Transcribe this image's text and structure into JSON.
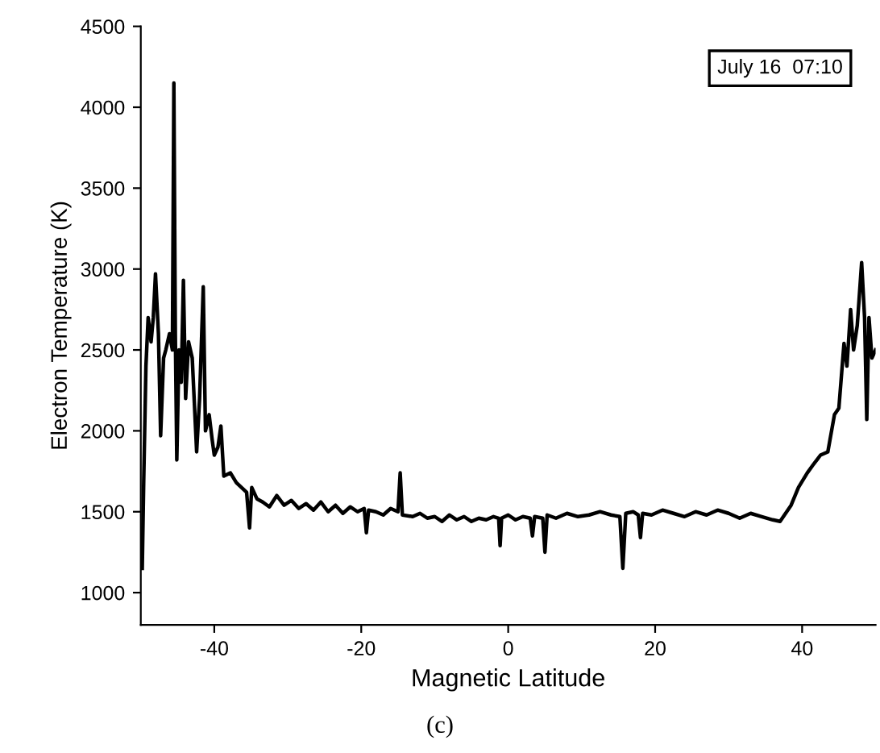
{
  "chart_data": {
    "type": "line",
    "xlabel": "Magnetic Latitude",
    "ylabel": "Electron Temperature (K)",
    "annotations": [
      "July 16  07:10",
      "(c)"
    ],
    "xlim": [
      -50,
      50
    ],
    "ylim": [
      800,
      4500
    ],
    "xticks": [
      -40,
      -20,
      0,
      20,
      40
    ],
    "yticks": [
      1000,
      1500,
      2000,
      2500,
      3000,
      3500,
      4000,
      4500
    ],
    "marker": "none",
    "line_style": "solid",
    "series": [
      {
        "color": "#000000",
        "x": [
          -49.8,
          -49.6,
          -49.3,
          -49.0,
          -48.6,
          -48.3,
          -48.0,
          -47.6,
          -47.3,
          -46.9,
          -46.6,
          -46.1,
          -45.7,
          -45.5,
          -45.3,
          -45.1,
          -44.8,
          -44.5,
          -44.2,
          -43.9,
          -43.5,
          -43.0,
          -42.4,
          -42.0,
          -41.5,
          -41.2,
          -40.7,
          -40.3,
          -40.0,
          -39.5,
          -39.1,
          -38.7,
          -37.8,
          -37.0,
          -36.3,
          -35.6,
          -35.2,
          -34.9,
          -34.2,
          -33.4,
          -32.5,
          -31.5,
          -30.5,
          -29.5,
          -28.5,
          -27.5,
          -26.5,
          -25.5,
          -24.5,
          -23.5,
          -22.5,
          -21.5,
          -20.5,
          -19.6,
          -19.3,
          -19.0,
          -18.0,
          -17.0,
          -16.0,
          -15.0,
          -14.7,
          -14.4,
          -13.0,
          -12.0,
          -11.0,
          -10.0,
          -9.0,
          -8.0,
          -7.0,
          -6.0,
          -5.0,
          -4.0,
          -3.0,
          -2.0,
          -1.3,
          -1.1,
          -0.9,
          0.0,
          1.0,
          2.0,
          3.0,
          3.3,
          3.6,
          4.7,
          5.0,
          5.3,
          6.5,
          8.0,
          9.5,
          11.0,
          12.5,
          14.0,
          15.2,
          15.6,
          16.0,
          17.0,
          17.7,
          18.0,
          18.3,
          19.5,
          21.0,
          22.5,
          24.0,
          25.5,
          27.0,
          28.5,
          30.0,
          31.5,
          33.0,
          34.5,
          36.0,
          37.0,
          38.5,
          39.5,
          40.7,
          41.5,
          42.5,
          43.5,
          44.4,
          45.0,
          45.7,
          46.1,
          46.6,
          47.0,
          47.5,
          48.1,
          48.5,
          48.8,
          49.1,
          49.5,
          50.0
        ],
        "values": [
          1150,
          1700,
          2400,
          2700,
          2550,
          2700,
          2970,
          2600,
          1970,
          2450,
          2500,
          2600,
          2500,
          4150,
          2600,
          1820,
          2500,
          2300,
          2930,
          2200,
          2550,
          2450,
          1870,
          2200,
          2890,
          2000,
          2100,
          1950,
          1850,
          1900,
          2030,
          1720,
          1740,
          1680,
          1650,
          1620,
          1400,
          1650,
          1580,
          1560,
          1530,
          1600,
          1540,
          1570,
          1520,
          1550,
          1510,
          1560,
          1500,
          1540,
          1490,
          1530,
          1500,
          1520,
          1370,
          1510,
          1500,
          1480,
          1520,
          1500,
          1740,
          1480,
          1470,
          1490,
          1460,
          1470,
          1440,
          1480,
          1450,
          1470,
          1440,
          1460,
          1450,
          1470,
          1460,
          1290,
          1460,
          1480,
          1450,
          1470,
          1460,
          1350,
          1470,
          1460,
          1250,
          1480,
          1460,
          1490,
          1470,
          1480,
          1500,
          1480,
          1470,
          1150,
          1490,
          1500,
          1480,
          1340,
          1490,
          1480,
          1510,
          1490,
          1470,
          1500,
          1480,
          1510,
          1490,
          1460,
          1490,
          1470,
          1450,
          1440,
          1540,
          1650,
          1740,
          1790,
          1850,
          1870,
          2100,
          2140,
          2540,
          2400,
          2750,
          2500,
          2650,
          3040,
          2700,
          2070,
          2700,
          2450,
          2500
        ]
      }
    ]
  }
}
